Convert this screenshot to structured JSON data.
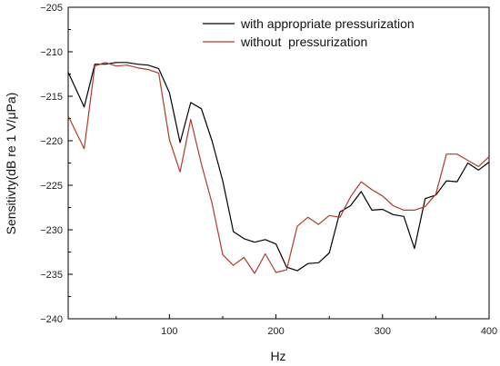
{
  "chart_data": {
    "type": "line",
    "xlabel": "Hz",
    "ylabel": "Sensitivty(dB re 1 V/μPa)",
    "xlim": [
      5,
      400
    ],
    "ylim": [
      -240,
      -205
    ],
    "x_ticks": [
      100,
      200,
      300,
      400
    ],
    "y_ticks": [
      -240,
      -235,
      -230,
      -225,
      -220,
      -215,
      -210,
      -205
    ],
    "x_tick_labels": [
      "100",
      "200",
      "300",
      "400"
    ],
    "y_tick_labels": [
      "−240",
      "−235",
      "−230",
      "−225",
      "−220",
      "−215",
      "−210",
      "−205"
    ],
    "grid": false,
    "legend_position": "top-right",
    "series": [
      {
        "name": "with appropriate pressurization",
        "color": "#000000",
        "x": [
          5,
          20,
          30,
          40,
          50,
          60,
          70,
          80,
          90,
          100,
          110,
          120,
          130,
          140,
          150,
          160,
          170,
          180,
          190,
          200,
          210,
          220,
          230,
          240,
          250,
          260,
          270,
          280,
          290,
          300,
          310,
          320,
          330,
          340,
          350,
          360,
          370,
          380,
          390,
          400
        ],
        "y": [
          -212.3,
          -216.2,
          -211.4,
          -211.4,
          -211.2,
          -211.2,
          -211.4,
          -211.5,
          -211.9,
          -214.6,
          -220.2,
          -215.7,
          -216.4,
          -220.0,
          -224.5,
          -230.2,
          -231.0,
          -231.4,
          -231.1,
          -231.6,
          -234.2,
          -234.6,
          -233.8,
          -233.7,
          -232.6,
          -228.0,
          -227.3,
          -225.7,
          -227.8,
          -227.7,
          -228.3,
          -228.5,
          -232.1,
          -226.5,
          -226.1,
          -224.5,
          -224.6,
          -222.5,
          -223.3,
          -222.4
        ]
      },
      {
        "name": "without  pressurization",
        "color": "#b03a2e",
        "x": [
          5,
          20,
          30,
          40,
          50,
          60,
          70,
          80,
          90,
          100,
          110,
          120,
          130,
          140,
          150,
          160,
          170,
          180,
          190,
          200,
          210,
          220,
          230,
          240,
          250,
          260,
          270,
          280,
          290,
          300,
          310,
          320,
          330,
          340,
          350,
          360,
          370,
          380,
          390,
          400
        ],
        "y": [
          -217.2,
          -220.9,
          -211.6,
          -211.2,
          -211.6,
          -211.5,
          -211.8,
          -212.0,
          -212.4,
          -219.9,
          -223.5,
          -217.6,
          -222.6,
          -227.0,
          -232.8,
          -234.0,
          -233.1,
          -234.9,
          -232.7,
          -234.8,
          -234.5,
          -229.6,
          -228.6,
          -229.4,
          -228.4,
          -228.6,
          -226.3,
          -224.6,
          -225.5,
          -226.2,
          -227.3,
          -227.8,
          -227.8,
          -227.4,
          -226.0,
          -221.5,
          -221.5,
          -222.2,
          -222.9,
          -221.8
        ]
      }
    ]
  }
}
